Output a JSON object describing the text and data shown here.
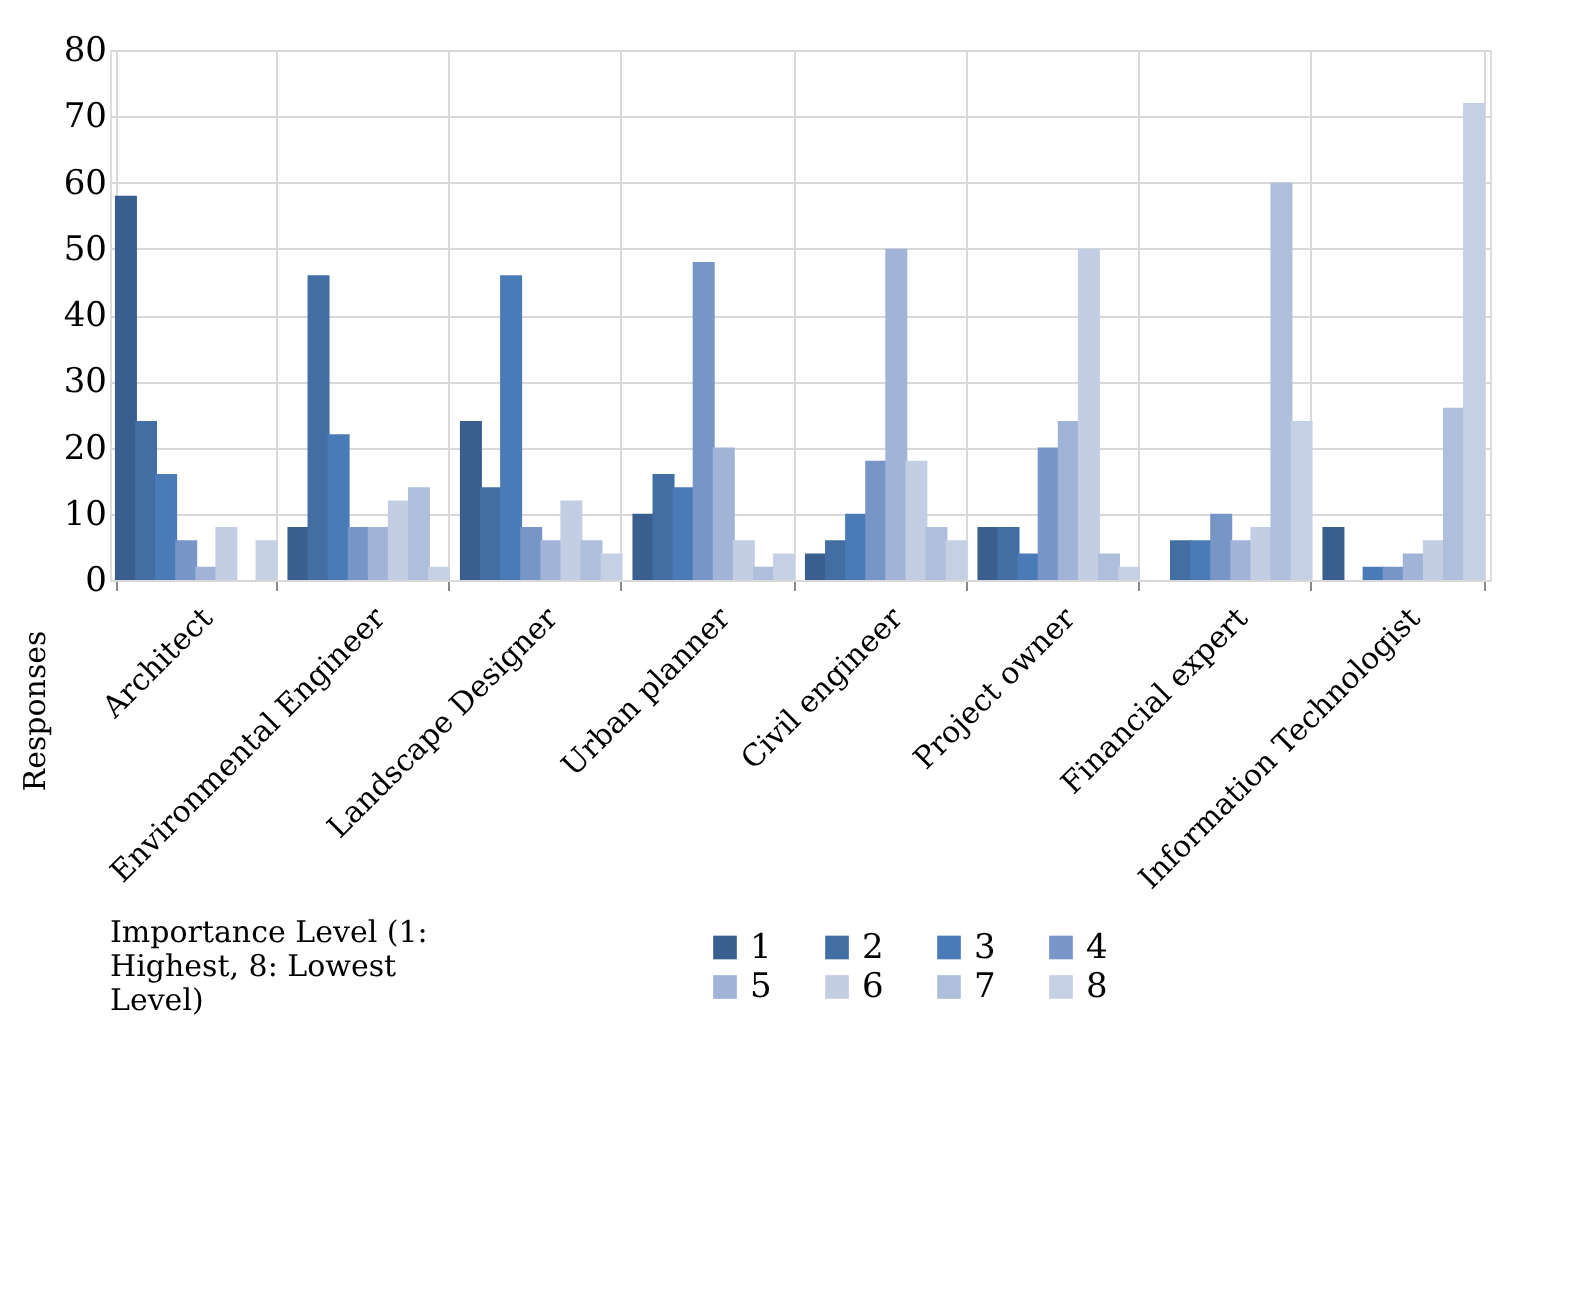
{
  "chart_data": {
    "type": "bar",
    "categories": [
      "Architect",
      "Environmental Engineer",
      "Landscape Designer",
      "Urban planner",
      "Civil engineer",
      "Project owner",
      "Financial expert",
      "Information Technologist"
    ],
    "series": [
      {
        "name": "1",
        "color": "#3a5f8f",
        "values": [
          58,
          8,
          24,
          10,
          4,
          8,
          0,
          8
        ]
      },
      {
        "name": "2",
        "color": "#436ea3",
        "values": [
          24,
          46,
          14,
          16,
          6,
          8,
          6,
          0
        ]
      },
      {
        "name": "3",
        "color": "#4a7bb7",
        "values": [
          16,
          22,
          46,
          14,
          10,
          4,
          6,
          2
        ]
      },
      {
        "name": "4",
        "color": "#7795c6",
        "values": [
          6,
          8,
          8,
          48,
          18,
          20,
          10,
          2
        ]
      },
      {
        "name": "5",
        "color": "#a1b3d6",
        "values": [
          2,
          8,
          6,
          20,
          50,
          24,
          6,
          4
        ]
      },
      {
        "name": "6",
        "color": "#c3cde3",
        "values": [
          8,
          12,
          12,
          6,
          18,
          50,
          8,
          6
        ]
      },
      {
        "name": "7",
        "color": "#afbfdb",
        "values": [
          0,
          14,
          6,
          2,
          8,
          4,
          60,
          26
        ]
      },
      {
        "name": "8",
        "color": "#c6d0e4",
        "values": [
          6,
          2,
          4,
          4,
          6,
          2,
          24,
          72
        ]
      }
    ],
    "ylabel": "Responses",
    "legend_title": "Importance Level (1: Highest, 8: Lowest Level)",
    "ylim": [
      0,
      80
    ],
    "yticks": [
      0,
      10,
      20,
      30,
      40,
      50,
      60,
      70,
      80
    ],
    "grid": true,
    "legend": "bottom"
  }
}
